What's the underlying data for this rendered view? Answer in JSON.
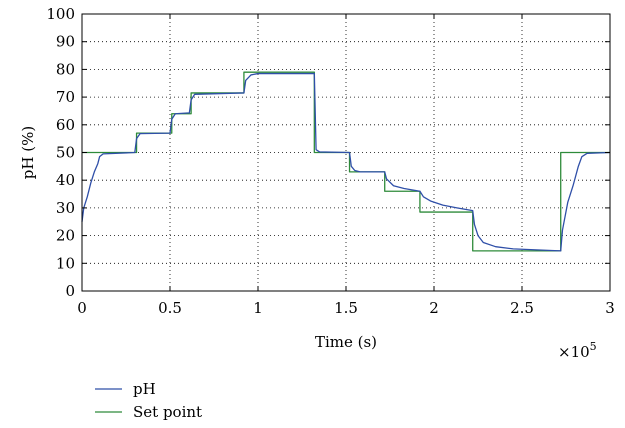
{
  "chart_data": {
    "type": "line",
    "xlabel": "Time (s)",
    "ylabel": "pH (%)",
    "x_multiplier_label": "×10",
    "x_multiplier_exponent": "5",
    "xlim": [
      0,
      3
    ],
    "ylim": [
      0,
      100
    ],
    "x_ticks": [
      0,
      0.5,
      1,
      1.5,
      2,
      2.5,
      3
    ],
    "x_tick_labels": [
      "0",
      "0.5",
      "1",
      "1.5",
      "2",
      "2.5",
      "3"
    ],
    "y_ticks": [
      0,
      10,
      20,
      30,
      40,
      50,
      60,
      70,
      80,
      90,
      100
    ],
    "y_tick_labels": [
      "0",
      "10",
      "20",
      "30",
      "40",
      "50",
      "60",
      "70",
      "80",
      "90",
      "100"
    ],
    "grid": "dotted",
    "legend_position": "bottom-left",
    "series": [
      {
        "name": "pH",
        "color": "#2f4fa8",
        "points": [
          [
            0,
            25
          ],
          [
            0.01,
            30
          ],
          [
            0.03,
            34
          ],
          [
            0.05,
            39
          ],
          [
            0.07,
            43
          ],
          [
            0.09,
            46
          ],
          [
            0.1,
            48.5
          ],
          [
            0.12,
            49.5
          ],
          [
            0.3,
            50
          ],
          [
            0.31,
            55
          ],
          [
            0.33,
            56.8
          ],
          [
            0.5,
            57
          ],
          [
            0.51,
            62
          ],
          [
            0.53,
            64
          ],
          [
            0.61,
            64.3
          ],
          [
            0.62,
            69
          ],
          [
            0.64,
            71
          ],
          [
            0.92,
            71.5
          ],
          [
            0.93,
            76
          ],
          [
            0.96,
            78
          ],
          [
            1.0,
            78.5
          ],
          [
            1.32,
            78.5
          ],
          [
            1.33,
            51
          ],
          [
            1.35,
            50.2
          ],
          [
            1.52,
            50
          ],
          [
            1.53,
            45
          ],
          [
            1.55,
            43.5
          ],
          [
            1.58,
            43
          ],
          [
            1.72,
            43
          ],
          [
            1.73,
            40.5
          ],
          [
            1.77,
            38
          ],
          [
            1.83,
            37
          ],
          [
            1.92,
            36
          ],
          [
            1.94,
            34
          ],
          [
            1.98,
            32.5
          ],
          [
            2.05,
            31
          ],
          [
            2.13,
            30
          ],
          [
            2.22,
            29
          ],
          [
            2.23,
            24
          ],
          [
            2.25,
            20
          ],
          [
            2.28,
            17.5
          ],
          [
            2.35,
            16
          ],
          [
            2.45,
            15.2
          ],
          [
            2.6,
            14.8
          ],
          [
            2.72,
            14.5
          ],
          [
            2.73,
            22
          ],
          [
            2.76,
            32
          ],
          [
            2.79,
            38
          ],
          [
            2.82,
            45
          ],
          [
            2.84,
            48.5
          ],
          [
            2.87,
            49.7
          ],
          [
            3.0,
            50
          ]
        ]
      },
      {
        "name": "Set point",
        "color": "#2e8b3a",
        "points": [
          [
            0,
            50
          ],
          [
            0.31,
            50
          ],
          [
            0.31,
            57
          ],
          [
            0.51,
            57
          ],
          [
            0.51,
            64
          ],
          [
            0.62,
            64
          ],
          [
            0.62,
            71.5
          ],
          [
            0.92,
            71.5
          ],
          [
            0.92,
            79
          ],
          [
            1.32,
            79
          ],
          [
            1.32,
            50
          ],
          [
            1.52,
            50
          ],
          [
            1.52,
            43
          ],
          [
            1.72,
            43
          ],
          [
            1.72,
            36
          ],
          [
            1.92,
            36
          ],
          [
            1.92,
            28.5
          ],
          [
            2.22,
            28.5
          ],
          [
            2.22,
            14.5
          ],
          [
            2.72,
            14.5
          ],
          [
            2.72,
            50
          ],
          [
            3.0,
            50
          ]
        ]
      }
    ]
  }
}
